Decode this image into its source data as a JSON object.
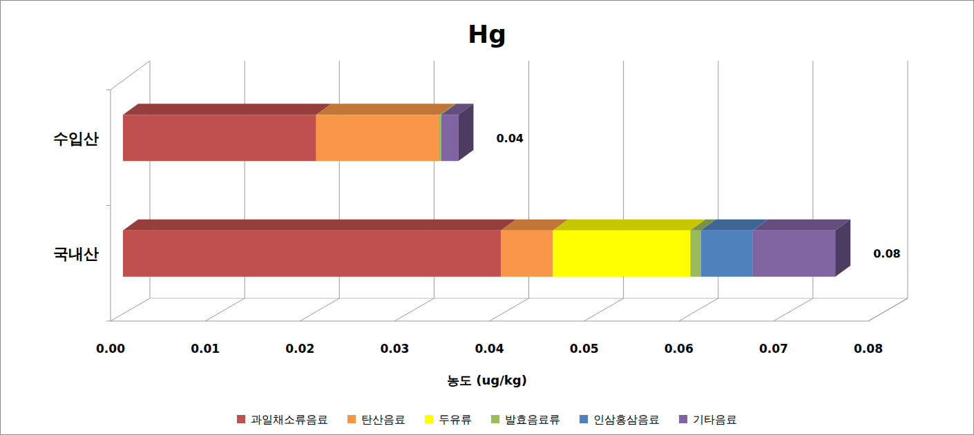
{
  "chart_data": {
    "type": "bar",
    "title": "Hg",
    "orientation": "horizontal",
    "stacked": true,
    "grid": true,
    "legend": "bottom",
    "x_label": "농도 (ug/kg)",
    "categories": [
      "수입산",
      "국내산"
    ],
    "series": [
      {
        "name": "과일채소류음료",
        "color": "#c0504d",
        "values": [
          0.0204,
          0.0399
        ]
      },
      {
        "name": "탄산음료",
        "color": "#f79646",
        "values": [
          0.013,
          0.0055
        ]
      },
      {
        "name": "두유류",
        "color": "#ffff00",
        "values": [
          0,
          0.0145
        ]
      },
      {
        "name": "발효음료류",
        "color": "#9bbb59",
        "values": [
          0.0002,
          0.0011
        ]
      },
      {
        "name": "인삼홍삼음료",
        "color": "#4f81bd",
        "values": [
          0,
          0.0055
        ]
      },
      {
        "name": "기타음료",
        "color": "#8064a2",
        "values": [
          0.0018,
          0.0087
        ]
      }
    ],
    "totals": [
      0.04,
      0.08
    ],
    "xlim": [
      0,
      0.08
    ],
    "xticks": [
      {
        "value": 0,
        "label": "0.00"
      },
      0.01,
      0.02,
      0.03,
      0.04,
      0.05,
      0.06,
      0.07,
      0.08
    ]
  }
}
